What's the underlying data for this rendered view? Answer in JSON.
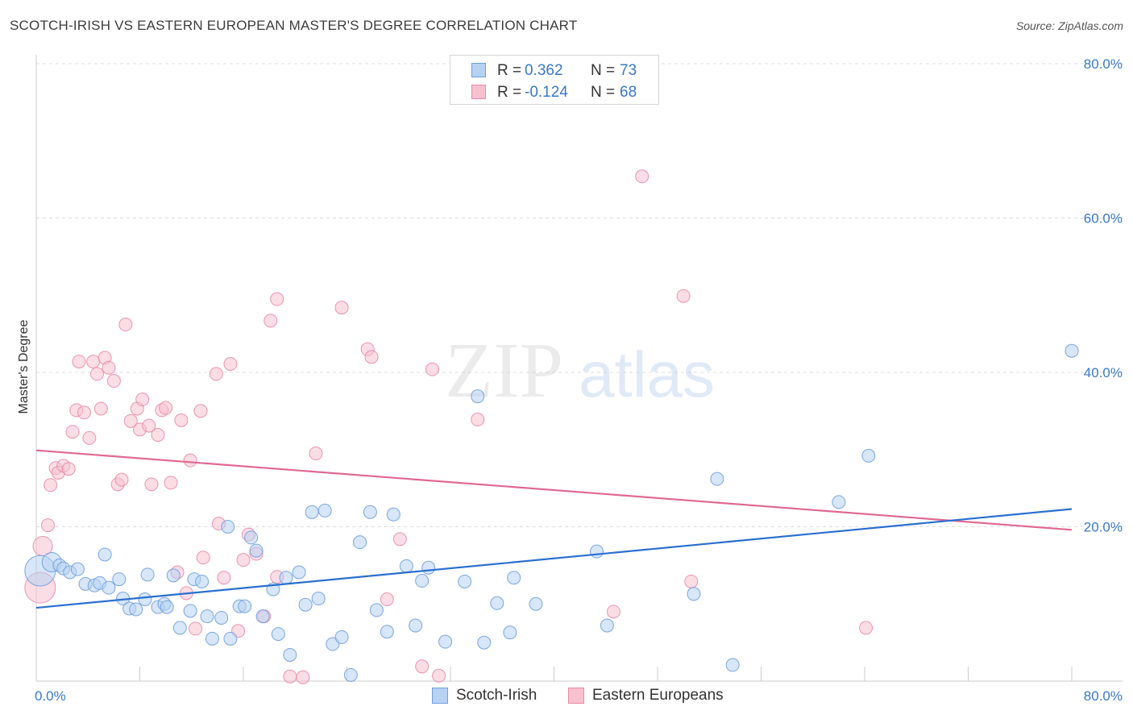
{
  "title": "SCOTCH-IRISH VS EASTERN EUROPEAN MASTER'S DEGREE CORRELATION CHART",
  "source": "Source: ZipAtlas.com",
  "watermark": {
    "zip": "ZIP",
    "atlas": "atlas"
  },
  "legend": {
    "r_label": "R =",
    "n_label": "N =",
    "rows": [
      {
        "name": "Scotch-Irish",
        "r": "0.362",
        "n": "73"
      },
      {
        "name": "Eastern Europeans",
        "r": "-0.124",
        "n": "68"
      }
    ]
  },
  "colors": {
    "blue_fill": "#b7d1f3",
    "blue_stroke": "#6e9fdc",
    "blue_line": "#2a6fd0",
    "pink_fill": "#f7c1d1",
    "pink_stroke": "#e88aa8",
    "pink_line": "#e0698f",
    "tick_text": "#3a78c9",
    "grid": "#dddddd"
  },
  "chart_data": {
    "type": "scatter",
    "title": "SCOTCH-IRISH VS EASTERN EUROPEAN MASTER'S DEGREE CORRELATION CHART",
    "xlabel": "",
    "ylabel": "Master's Degree",
    "xlim": [
      0,
      80
    ],
    "ylim": [
      0,
      80
    ],
    "x_tick_labels": [
      "0.0%",
      "80.0%"
    ],
    "y_ticks": [
      20,
      40,
      60,
      80
    ],
    "y_tick_labels": [
      "20.0%",
      "40.0%",
      "60.0%",
      "80.0%"
    ],
    "x_minor_ticks": [
      0,
      8,
      16,
      24,
      32,
      40,
      48,
      56,
      64,
      72,
      80
    ],
    "series": [
      {
        "name": "Scotch-Irish",
        "trend": {
          "x": [
            0,
            80
          ],
          "y": [
            9.5,
            22.3
          ]
        },
        "points": [
          [
            0.3,
            14.3,
            3
          ],
          [
            1.2,
            15.4,
            2
          ],
          [
            1.8,
            15.0,
            1
          ],
          [
            2.1,
            14.6,
            1
          ],
          [
            2.6,
            14.1,
            1
          ],
          [
            3.2,
            14.5,
            1
          ],
          [
            3.8,
            12.6,
            1
          ],
          [
            4.5,
            12.4,
            1
          ],
          [
            4.9,
            12.7,
            1
          ],
          [
            5.3,
            16.4,
            1
          ],
          [
            5.6,
            12.1,
            1
          ],
          [
            6.4,
            13.2,
            1
          ],
          [
            6.7,
            10.7,
            1
          ],
          [
            7.2,
            9.4,
            1
          ],
          [
            7.7,
            9.3,
            1
          ],
          [
            8.4,
            10.6,
            1
          ],
          [
            8.6,
            13.8,
            1
          ],
          [
            9.4,
            9.6,
            1
          ],
          [
            9.9,
            10.0,
            1
          ],
          [
            10.1,
            9.6,
            1
          ],
          [
            10.6,
            13.7,
            1
          ],
          [
            11.1,
            6.9,
            1
          ],
          [
            11.9,
            9.1,
            1
          ],
          [
            12.2,
            13.2,
            1
          ],
          [
            12.8,
            12.9,
            1
          ],
          [
            13.2,
            8.4,
            1
          ],
          [
            13.6,
            5.5,
            1
          ],
          [
            14.3,
            8.2,
            1
          ],
          [
            14.8,
            20.0,
            1
          ],
          [
            15.0,
            5.5,
            1
          ],
          [
            15.7,
            9.7,
            1
          ],
          [
            16.1,
            9.7,
            1
          ],
          [
            16.6,
            18.6,
            1
          ],
          [
            17.0,
            16.9,
            1
          ],
          [
            17.5,
            8.4,
            1
          ],
          [
            18.3,
            11.9,
            1
          ],
          [
            18.7,
            6.1,
            1
          ],
          [
            19.3,
            13.4,
            1
          ],
          [
            19.6,
            3.4,
            1
          ],
          [
            20.3,
            14.1,
            1
          ],
          [
            20.8,
            9.9,
            1
          ],
          [
            21.3,
            21.9,
            1
          ],
          [
            21.8,
            10.7,
            1
          ],
          [
            22.3,
            22.1,
            1
          ],
          [
            22.9,
            4.8,
            1
          ],
          [
            23.6,
            5.7,
            1
          ],
          [
            24.3,
            0.8,
            1
          ],
          [
            25.0,
            18.0,
            1
          ],
          [
            25.8,
            21.9,
            1
          ],
          [
            26.3,
            9.2,
            1
          ],
          [
            27.1,
            6.4,
            1
          ],
          [
            27.6,
            21.6,
            1
          ],
          [
            28.6,
            14.9,
            1
          ],
          [
            29.3,
            7.2,
            1
          ],
          [
            29.8,
            13.0,
            1
          ],
          [
            30.3,
            14.7,
            1
          ],
          [
            31.6,
            5.1,
            1
          ],
          [
            33.1,
            12.9,
            1
          ],
          [
            34.1,
            36.9,
            1
          ],
          [
            34.6,
            5.0,
            1
          ],
          [
            35.6,
            10.1,
            1
          ],
          [
            36.6,
            6.3,
            1
          ],
          [
            36.9,
            13.4,
            1
          ],
          [
            38.6,
            10.0,
            1
          ],
          [
            43.3,
            16.8,
            1
          ],
          [
            44.1,
            7.2,
            1
          ],
          [
            50.8,
            11.3,
            1
          ],
          [
            52.6,
            26.2,
            1
          ],
          [
            53.8,
            2.1,
            1
          ],
          [
            62.0,
            23.2,
            1
          ],
          [
            64.3,
            29.2,
            1
          ],
          [
            80.0,
            42.8,
            1
          ]
        ]
      },
      {
        "name": "Eastern Europeans",
        "trend": {
          "x": [
            0,
            80
          ],
          "y": [
            29.9,
            19.6
          ]
        },
        "points": [
          [
            0.3,
            12.1,
            3
          ],
          [
            0.5,
            17.5,
            2
          ],
          [
            0.9,
            20.2,
            1
          ],
          [
            1.1,
            25.4,
            1
          ],
          [
            1.5,
            27.6,
            1
          ],
          [
            1.7,
            27.0,
            1
          ],
          [
            2.1,
            27.9,
            1
          ],
          [
            2.5,
            27.5,
            1
          ],
          [
            2.8,
            32.3,
            1
          ],
          [
            3.1,
            35.1,
            1
          ],
          [
            3.3,
            41.4,
            1
          ],
          [
            3.7,
            34.8,
            1
          ],
          [
            4.1,
            31.5,
            1
          ],
          [
            4.4,
            41.4,
            1
          ],
          [
            4.7,
            39.8,
            1
          ],
          [
            5.0,
            35.3,
            1
          ],
          [
            5.3,
            41.9,
            1
          ],
          [
            5.6,
            40.6,
            1
          ],
          [
            6.0,
            38.9,
            1
          ],
          [
            6.3,
            25.5,
            1
          ],
          [
            6.6,
            26.1,
            1
          ],
          [
            6.9,
            46.2,
            1
          ],
          [
            7.3,
            33.7,
            1
          ],
          [
            7.8,
            35.3,
            1
          ],
          [
            8.0,
            32.6,
            1
          ],
          [
            8.2,
            36.5,
            1
          ],
          [
            8.7,
            33.1,
            1
          ],
          [
            8.9,
            25.5,
            1
          ],
          [
            9.4,
            31.9,
            1
          ],
          [
            9.7,
            35.1,
            1
          ],
          [
            10.0,
            35.4,
            1
          ],
          [
            10.4,
            25.7,
            1
          ],
          [
            10.9,
            14.1,
            1
          ],
          [
            11.2,
            33.8,
            1
          ],
          [
            11.6,
            11.4,
            1
          ],
          [
            11.9,
            28.6,
            1
          ],
          [
            12.3,
            6.8,
            1
          ],
          [
            12.7,
            35.0,
            1
          ],
          [
            12.9,
            16.0,
            1
          ],
          [
            13.9,
            39.8,
            1
          ],
          [
            14.1,
            20.4,
            1
          ],
          [
            14.5,
            13.4,
            1
          ],
          [
            15.0,
            41.1,
            1
          ],
          [
            15.6,
            6.5,
            1
          ],
          [
            16.0,
            15.7,
            1
          ],
          [
            16.4,
            19.0,
            1
          ],
          [
            17.0,
            16.5,
            1
          ],
          [
            17.6,
            8.4,
            1
          ],
          [
            18.1,
            46.7,
            1
          ],
          [
            18.6,
            13.5,
            1
          ],
          [
            18.6,
            49.5,
            1
          ],
          [
            19.6,
            0.6,
            1
          ],
          [
            20.6,
            0.5,
            1
          ],
          [
            21.6,
            29.5,
            1
          ],
          [
            23.6,
            48.4,
            1
          ],
          [
            25.6,
            43.0,
            1
          ],
          [
            25.9,
            42.0,
            1
          ],
          [
            27.1,
            10.6,
            1
          ],
          [
            28.1,
            18.4,
            1
          ],
          [
            29.8,
            1.9,
            1
          ],
          [
            30.6,
            40.4,
            1
          ],
          [
            31.1,
            0.7,
            1
          ],
          [
            34.1,
            33.9,
            1
          ],
          [
            44.6,
            9.0,
            1
          ],
          [
            46.8,
            65.4,
            1
          ],
          [
            50.0,
            49.9,
            1
          ],
          [
            50.6,
            12.9,
            1
          ],
          [
            64.1,
            6.9,
            1
          ]
        ]
      }
    ]
  }
}
